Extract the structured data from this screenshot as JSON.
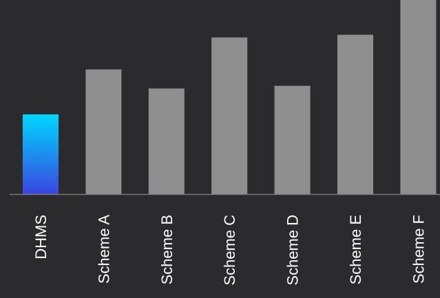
{
  "chart_data": {
    "type": "bar",
    "title": "",
    "xlabel": "",
    "ylabel": "",
    "categories": [
      "DHMS",
      "Scheme A",
      "Scheme B",
      "Scheme C",
      "Scheme D",
      "Scheme E",
      "Scheme F"
    ],
    "values": [
      117,
      183,
      155,
      230,
      159,
      234,
      285
    ],
    "ylim": [
      0,
      285
    ],
    "grid": false,
    "highlight_category": "DHMS",
    "colors": {
      "background": "#2b2b2d",
      "bar_default": "#8f8f8f",
      "highlight_gradient_top": "#00d8ff",
      "highlight_gradient_bottom": "#3a46e0",
      "axis": "#7a7a7a",
      "label": "#ffffff"
    }
  }
}
